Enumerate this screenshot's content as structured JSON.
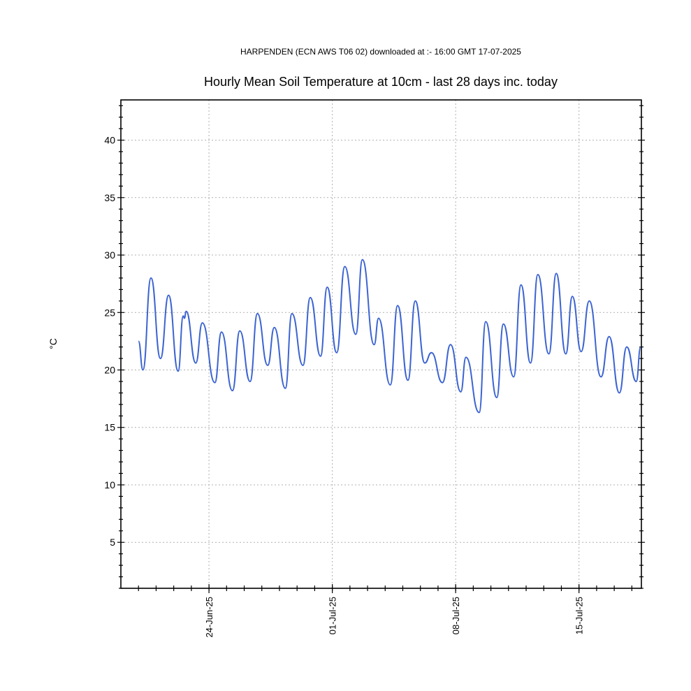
{
  "chart_data": {
    "type": "line",
    "subtitle": "HARPENDEN (ECN AWS T06 02) downloaded at :- 16:00 GMT 17-07-2025",
    "title": "Hourly Mean Soil Temperature at 10cm - last 28 days inc. today",
    "ylabel": "°C",
    "xlabel": "",
    "ylim": [
      1,
      43.5
    ],
    "xlim": [
      "2025-06-19T00:00",
      "2025-07-18T13:00"
    ],
    "yticks": [
      5,
      10,
      15,
      20,
      25,
      30,
      35,
      40
    ],
    "xticks": [
      {
        "date": "2025-06-24T00:00",
        "label": "24-Jun-25"
      },
      {
        "date": "2025-07-01T00:00",
        "label": "01-Jul-25"
      },
      {
        "date": "2025-07-08T00:00",
        "label": "08-Jul-25"
      },
      {
        "date": "2025-07-15T00:00",
        "label": "15-Jul-25"
      }
    ],
    "grid": true,
    "series": [
      {
        "color": "#3c64d2",
        "points": [
          [
            "2025-06-20T00:00",
            22.5
          ],
          [
            "2025-06-20T06:00",
            20.0
          ],
          [
            "2025-06-20T17:00",
            28.0
          ],
          [
            "2025-06-21T06:00",
            21.0
          ],
          [
            "2025-06-21T17:00",
            26.5
          ],
          [
            "2025-06-22T06:00",
            19.9
          ],
          [
            "2025-06-22T13:00",
            24.7
          ],
          [
            "2025-06-22T14:30",
            24.5
          ],
          [
            "2025-06-22T17:00",
            25.1
          ],
          [
            "2025-06-23T06:00",
            20.6
          ],
          [
            "2025-06-23T15:00",
            24.1
          ],
          [
            "2025-06-24T08:00",
            18.9
          ],
          [
            "2025-06-24T17:00",
            23.3
          ],
          [
            "2025-06-25T08:00",
            18.2
          ],
          [
            "2025-06-25T18:00",
            23.4
          ],
          [
            "2025-06-26T08:00",
            19.0
          ],
          [
            "2025-06-26T18:00",
            24.9
          ],
          [
            "2025-06-27T08:00",
            20.4
          ],
          [
            "2025-06-27T17:00",
            23.7
          ],
          [
            "2025-06-28T08:00",
            18.4
          ],
          [
            "2025-06-28T17:00",
            24.9
          ],
          [
            "2025-06-29T08:00",
            20.4
          ],
          [
            "2025-06-29T18:00",
            26.3
          ],
          [
            "2025-06-30T08:00",
            21.2
          ],
          [
            "2025-06-30T17:00",
            27.2
          ],
          [
            "2025-07-01T06:00",
            21.5
          ],
          [
            "2025-07-01T17:00",
            29.0
          ],
          [
            "2025-07-02T08:00",
            23.1
          ],
          [
            "2025-07-02T17:00",
            29.6
          ],
          [
            "2025-07-03T09:00",
            22.2
          ],
          [
            "2025-07-03T15:00",
            24.5
          ],
          [
            "2025-07-04T07:00",
            18.7
          ],
          [
            "2025-07-04T17:00",
            25.6
          ],
          [
            "2025-07-05T07:00",
            19.1
          ],
          [
            "2025-07-05T17:00",
            26.0
          ],
          [
            "2025-07-06T06:00",
            20.6
          ],
          [
            "2025-07-06T15:00",
            21.5
          ],
          [
            "2025-07-07T06:00",
            18.9
          ],
          [
            "2025-07-07T17:00",
            22.2
          ],
          [
            "2025-07-08T07:00",
            18.1
          ],
          [
            "2025-07-08T14:00",
            21.1
          ],
          [
            "2025-07-09T08:00",
            16.3
          ],
          [
            "2025-07-09T17:00",
            24.2
          ],
          [
            "2025-07-10T08:00",
            17.6
          ],
          [
            "2025-07-10T17:00",
            24.0
          ],
          [
            "2025-07-11T07:00",
            19.4
          ],
          [
            "2025-07-11T17:00",
            27.4
          ],
          [
            "2025-07-12T06:00",
            20.6
          ],
          [
            "2025-07-12T16:00",
            28.3
          ],
          [
            "2025-07-13T07:00",
            21.4
          ],
          [
            "2025-07-13T17:00",
            28.4
          ],
          [
            "2025-07-14T06:00",
            21.4
          ],
          [
            "2025-07-14T15:00",
            26.4
          ],
          [
            "2025-07-15T03:00",
            21.6
          ],
          [
            "2025-07-15T14:00",
            26.0
          ],
          [
            "2025-07-16T06:00",
            19.4
          ],
          [
            "2025-07-16T17:00",
            22.9
          ],
          [
            "2025-07-17T07:00",
            18.0
          ],
          [
            "2025-07-17T17:00",
            22.0
          ],
          [
            "2025-07-18T06:00",
            19.0
          ],
          [
            "2025-07-18T12:00",
            22.0
          ]
        ]
      }
    ]
  }
}
